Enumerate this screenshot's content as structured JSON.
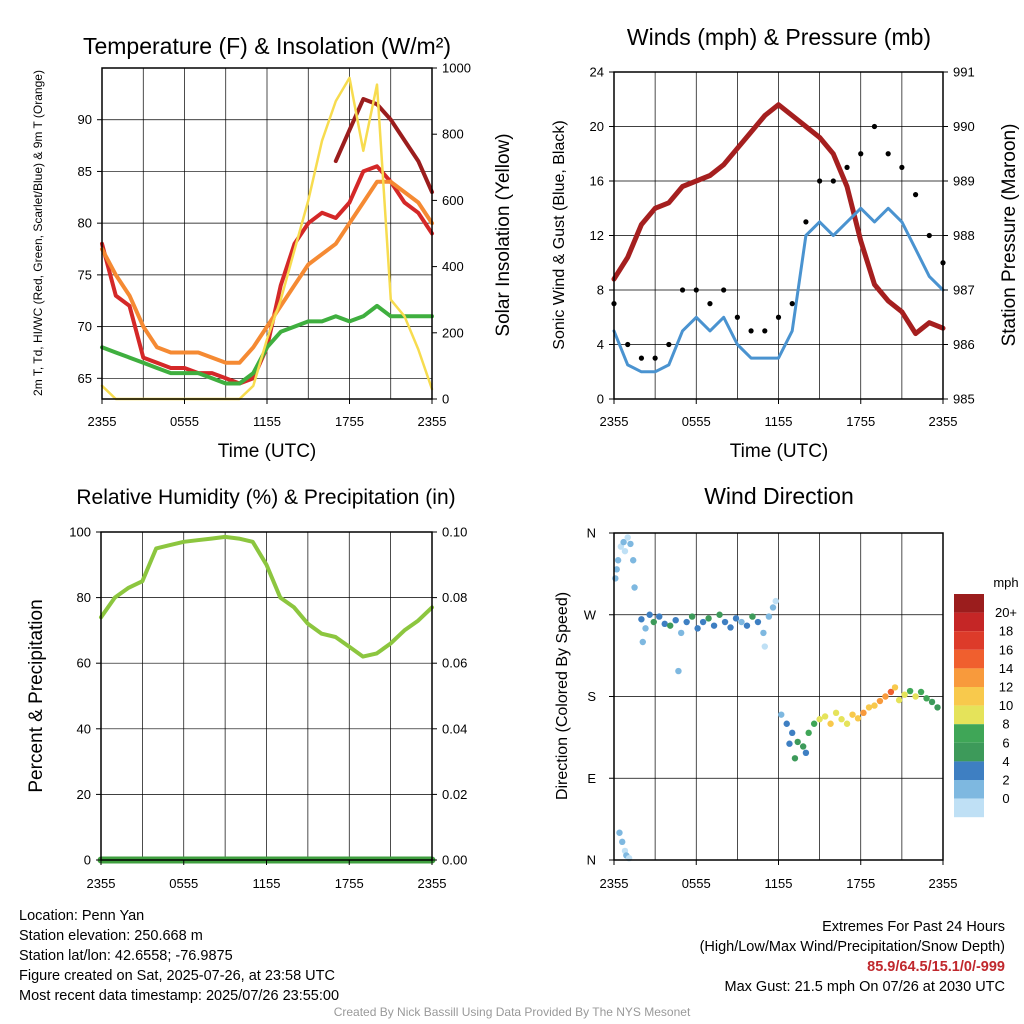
{
  "colors": {
    "temp_red": "#d42828",
    "dewpoint_green": "#3faf3f",
    "heat_index_scarlet": "#9b1d1d",
    "temp9m_orange": "#f58a33",
    "solar_yellow": "#f7dc4f",
    "wind_blue": "#4a93d0",
    "gust_black": "#000000",
    "pressure_maroon": "#a51f1f",
    "rh_green": "#8cc63f",
    "precip_green": "#3f9f3f"
  },
  "time_ticks": [
    "2355",
    "0555",
    "1155",
    "1755",
    "2355"
  ],
  "chart_data": [
    {
      "type": "line",
      "title": "Temperature (F) & Insolation (W/m²)",
      "xlabel": "Time (UTC)",
      "ylabel": "2m T, Td, HI/WC (Red, Green, Scarlet/Blue) & 9m T (Orange)",
      "ylabel_right": "Solar Insolation (Yellow)",
      "ylim": [
        63,
        95
      ],
      "ylim_right": [
        0,
        1000
      ],
      "yticks": [
        65,
        70,
        75,
        80,
        85,
        90
      ],
      "yticks_right": [
        0,
        200,
        400,
        600,
        800,
        1000
      ],
      "x_hours": [
        0,
        1,
        2,
        3,
        4,
        5,
        6,
        7,
        8,
        9,
        10,
        11,
        12,
        13,
        14,
        15,
        16,
        17,
        18,
        19,
        20,
        21,
        22,
        23,
        24
      ],
      "series": [
        {
          "key": "temp_2m",
          "color_key": "temp_red",
          "values": [
            78,
            73,
            72,
            67,
            66.5,
            66,
            66,
            65.5,
            65.5,
            65,
            64.5,
            65,
            68,
            74,
            78,
            80,
            81,
            80.5,
            82,
            85,
            85.5,
            84,
            82,
            81,
            79
          ]
        },
        {
          "key": "heat_index",
          "color_key": "heat_index_scarlet",
          "values": [
            null,
            null,
            null,
            null,
            null,
            null,
            null,
            null,
            null,
            null,
            null,
            null,
            null,
            null,
            null,
            null,
            null,
            86,
            89,
            92,
            91.5,
            90,
            88,
            86,
            83
          ]
        },
        {
          "key": "temp_9m",
          "color_key": "temp9m_orange",
          "values": [
            77.5,
            75,
            73,
            70,
            68,
            67.5,
            67.5,
            67.5,
            67,
            66.5,
            66.5,
            68,
            70,
            72,
            74,
            76,
            77,
            78,
            80,
            82,
            84,
            84,
            83,
            82,
            80
          ]
        },
        {
          "key": "dewpoint",
          "color_key": "dewpoint_green",
          "values": [
            68,
            67.5,
            67,
            66.5,
            66,
            65.5,
            65.5,
            65.5,
            65,
            64.5,
            64.5,
            65.5,
            68,
            69.5,
            70,
            70.5,
            70.5,
            71,
            70.5,
            71,
            72,
            71,
            71,
            71,
            71
          ]
        },
        {
          "key": "solar",
          "color_key": "solar_yellow",
          "axis": "right",
          "values": [
            40,
            0,
            0,
            0,
            0,
            0,
            0,
            0,
            0,
            0,
            0,
            40,
            180,
            300,
            450,
            600,
            780,
            900,
            970,
            750,
            950,
            300,
            250,
            150,
            30
          ]
        }
      ]
    },
    {
      "type": "line",
      "title": "Winds (mph) & Pressure (mb)",
      "xlabel": "Time (UTC)",
      "ylabel": "Sonic Wind & Gust (Blue, Black)",
      "ylabel_right": "Station Pressure (Maroon)",
      "ylim": [
        0,
        24
      ],
      "ylim_right": [
        985,
        991
      ],
      "yticks": [
        0,
        4,
        8,
        12,
        16,
        20,
        24
      ],
      "yticks_right": [
        985,
        986,
        987,
        988,
        989,
        990,
        991
      ],
      "x_hours": [
        0,
        1,
        2,
        3,
        4,
        5,
        6,
        7,
        8,
        9,
        10,
        11,
        12,
        13,
        14,
        15,
        16,
        17,
        18,
        19,
        20,
        21,
        22,
        23,
        24
      ],
      "series": [
        {
          "key": "pressure",
          "color_key": "pressure_maroon",
          "axis": "right",
          "values": [
            987.2,
            987.6,
            988.2,
            988.5,
            988.6,
            988.9,
            989.0,
            989.1,
            989.3,
            989.6,
            989.9,
            990.2,
            990.4,
            990.2,
            990.0,
            989.8,
            989.5,
            988.9,
            987.9,
            987.1,
            986.8,
            986.6,
            986.2,
            986.4,
            986.3
          ]
        },
        {
          "key": "wind",
          "color_key": "wind_blue",
          "values": [
            5,
            2.5,
            2,
            2,
            2.5,
            5,
            6,
            5,
            6,
            4,
            3,
            3,
            3,
            5,
            12,
            13,
            12,
            13,
            14,
            13,
            14,
            13,
            11,
            9,
            8
          ]
        },
        {
          "key": "gust",
          "color_key": "gust_black",
          "style": "dots",
          "values": [
            7,
            4,
            3,
            3,
            4,
            8,
            8,
            7,
            8,
            6,
            5,
            5,
            6,
            7,
            13,
            16,
            16,
            17,
            18,
            20,
            18,
            17,
            15,
            12,
            10
          ]
        }
      ]
    },
    {
      "type": "line",
      "title": "Relative Humidity (%) & Precipitation (in)",
      "ylabel": "Percent & Precipitation",
      "ylim": [
        0,
        100
      ],
      "ylim_right": [
        0,
        0.1
      ],
      "yticks": [
        0,
        20,
        40,
        60,
        80,
        100
      ],
      "yticks_right": [
        "0.00",
        "0.02",
        "0.04",
        "0.06",
        "0.08",
        "0.10"
      ],
      "x_hours": [
        0,
        1,
        2,
        3,
        4,
        5,
        6,
        7,
        8,
        9,
        10,
        11,
        12,
        13,
        14,
        15,
        16,
        17,
        18,
        19,
        20,
        21,
        22,
        23,
        24
      ],
      "series": [
        {
          "key": "rh",
          "color_key": "rh_green",
          "values": [
            74,
            80,
            83,
            85,
            95,
            96,
            97,
            97.5,
            98,
            98.5,
            98,
            97,
            90,
            80,
            77,
            72,
            69,
            68,
            65,
            62,
            63,
            66,
            70,
            73,
            77
          ]
        },
        {
          "key": "precip",
          "color_key": "precip_green",
          "axis": "right",
          "values": [
            0,
            0,
            0,
            0,
            0,
            0,
            0,
            0,
            0,
            0,
            0,
            0,
            0,
            0,
            0,
            0,
            0,
            0,
            0,
            0,
            0,
            0,
            0,
            0,
            0
          ]
        }
      ]
    },
    {
      "type": "scatter",
      "title": "Wind Direction",
      "ylabel": "Direction (Colored By Speed)",
      "ytick_labels": [
        "N",
        "E",
        "S",
        "W",
        "N"
      ],
      "ylim_deg": [
        0,
        360
      ],
      "colorbar_title": "mph",
      "colorbar_labels": [
        "20+",
        "18",
        "16",
        "14",
        "12",
        "10",
        "8",
        "6",
        "4",
        "2",
        "0"
      ],
      "colorbar_colors": [
        "#9b1d1d",
        "#c52626",
        "#dd3b2a",
        "#f05f2e",
        "#f89a3c",
        "#f8c94c",
        "#e5e35a",
        "#3fa657",
        "#3d9a5a",
        "#3e7fc2",
        "#7eb8e0",
        "#bfe0f5"
      ],
      "points": [
        {
          "h": 0.1,
          "deg": 310,
          "mph": 3
        },
        {
          "h": 0.2,
          "deg": 320,
          "mph": 2
        },
        {
          "h": 0.3,
          "deg": 330,
          "mph": 2
        },
        {
          "h": 0.5,
          "deg": 345,
          "mph": 1
        },
        {
          "h": 0.7,
          "deg": 350,
          "mph": 2
        },
        {
          "h": 0.8,
          "deg": 340,
          "mph": 1
        },
        {
          "h": 1.0,
          "deg": 355,
          "mph": 1
        },
        {
          "h": 1.2,
          "deg": 348,
          "mph": 2
        },
        {
          "h": 1.4,
          "deg": 330,
          "mph": 2
        },
        {
          "h": 1.5,
          "deg": 300,
          "mph": 2
        },
        {
          "h": 0.4,
          "deg": 30,
          "mph": 2
        },
        {
          "h": 0.6,
          "deg": 20,
          "mph": 2
        },
        {
          "h": 0.8,
          "deg": 10,
          "mph": 1
        },
        {
          "h": 0.9,
          "deg": 5,
          "mph": 2
        },
        {
          "h": 1.1,
          "deg": 2,
          "mph": 1
        },
        {
          "h": 2.0,
          "deg": 265,
          "mph": 4
        },
        {
          "h": 2.3,
          "deg": 255,
          "mph": 3
        },
        {
          "h": 2.6,
          "deg": 270,
          "mph": 5
        },
        {
          "h": 2.9,
          "deg": 262,
          "mph": 6
        },
        {
          "h": 3.3,
          "deg": 268,
          "mph": 5
        },
        {
          "h": 3.7,
          "deg": 260,
          "mph": 4
        },
        {
          "h": 4.1,
          "deg": 258,
          "mph": 6
        },
        {
          "h": 4.5,
          "deg": 264,
          "mph": 4
        },
        {
          "h": 4.9,
          "deg": 250,
          "mph": 3
        },
        {
          "h": 5.3,
          "deg": 262,
          "mph": 5
        },
        {
          "h": 5.7,
          "deg": 268,
          "mph": 6
        },
        {
          "h": 6.1,
          "deg": 255,
          "mph": 4
        },
        {
          "h": 6.5,
          "deg": 262,
          "mph": 5
        },
        {
          "h": 6.9,
          "deg": 266,
          "mph": 6
        },
        {
          "h": 7.3,
          "deg": 258,
          "mph": 4
        },
        {
          "h": 7.7,
          "deg": 270,
          "mph": 6
        },
        {
          "h": 8.1,
          "deg": 262,
          "mph": 5
        },
        {
          "h": 8.5,
          "deg": 256,
          "mph": 4
        },
        {
          "h": 8.9,
          "deg": 266,
          "mph": 5
        },
        {
          "h": 9.3,
          "deg": 262,
          "mph": 3
        },
        {
          "h": 9.7,
          "deg": 258,
          "mph": 4
        },
        {
          "h": 10.1,
          "deg": 268,
          "mph": 6
        },
        {
          "h": 10.5,
          "deg": 262,
          "mph": 4
        },
        {
          "h": 10.9,
          "deg": 250,
          "mph": 3
        },
        {
          "h": 11.3,
          "deg": 268,
          "mph": 2
        },
        {
          "h": 11.6,
          "deg": 278,
          "mph": 2
        },
        {
          "h": 11.8,
          "deg": 285,
          "mph": 1
        },
        {
          "h": 4.7,
          "deg": 208,
          "mph": 3
        },
        {
          "h": 2.1,
          "deg": 240,
          "mph": 3
        },
        {
          "h": 11.0,
          "deg": 235,
          "mph": 1
        },
        {
          "h": 12.2,
          "deg": 160,
          "mph": 3
        },
        {
          "h": 12.6,
          "deg": 150,
          "mph": 4
        },
        {
          "h": 13.0,
          "deg": 140,
          "mph": 5
        },
        {
          "h": 13.4,
          "deg": 130,
          "mph": 6
        },
        {
          "h": 13.8,
          "deg": 125,
          "mph": 7
        },
        {
          "h": 14.2,
          "deg": 140,
          "mph": 8
        },
        {
          "h": 14.6,
          "deg": 150,
          "mph": 9
        },
        {
          "h": 15.0,
          "deg": 155,
          "mph": 10
        },
        {
          "h": 15.4,
          "deg": 158,
          "mph": 11
        },
        {
          "h": 15.8,
          "deg": 150,
          "mph": 12
        },
        {
          "h": 16.2,
          "deg": 162,
          "mph": 11
        },
        {
          "h": 16.6,
          "deg": 155,
          "mph": 10
        },
        {
          "h": 17.0,
          "deg": 150,
          "mph": 11
        },
        {
          "h": 17.4,
          "deg": 160,
          "mph": 12
        },
        {
          "h": 17.8,
          "deg": 156,
          "mph": 13
        },
        {
          "h": 18.2,
          "deg": 162,
          "mph": 14
        },
        {
          "h": 18.6,
          "deg": 168,
          "mph": 12
        },
        {
          "h": 19.0,
          "deg": 170,
          "mph": 13
        },
        {
          "h": 19.4,
          "deg": 175,
          "mph": 15
        },
        {
          "h": 19.8,
          "deg": 180,
          "mph": 14
        },
        {
          "h": 20.2,
          "deg": 185,
          "mph": 17
        },
        {
          "h": 20.5,
          "deg": 190,
          "mph": 12
        },
        {
          "h": 20.8,
          "deg": 176,
          "mph": 11
        },
        {
          "h": 21.2,
          "deg": 182,
          "mph": 10
        },
        {
          "h": 21.6,
          "deg": 186,
          "mph": 9
        },
        {
          "h": 22.0,
          "deg": 180,
          "mph": 10
        },
        {
          "h": 22.4,
          "deg": 185,
          "mph": 9
        },
        {
          "h": 22.8,
          "deg": 178,
          "mph": 8
        },
        {
          "h": 23.2,
          "deg": 174,
          "mph": 7
        },
        {
          "h": 23.6,
          "deg": 168,
          "mph": 6
        },
        {
          "h": 14.0,
          "deg": 118,
          "mph": 5
        },
        {
          "h": 12.8,
          "deg": 128,
          "mph": 4
        },
        {
          "h": 13.2,
          "deg": 112,
          "mph": 6
        }
      ]
    }
  ],
  "info": {
    "location": "Location: Penn Yan",
    "elevation": "Station elevation: 250.668 m",
    "latlon": "Station lat/lon: 42.6558; -76.9875",
    "created": "Figure created on Sat, 2025-07-26, at 23:58 UTC",
    "recent": "Most recent data timestamp: 2025/07/26 23:55:00"
  },
  "extremes": {
    "title": "Extremes For Past 24 Hours",
    "subtitle": "(High/Low/Max Wind/Precipitation/Snow Depth)",
    "values": "85.9/64.5/15.1/0/-999",
    "max_gust": "Max Gust: 21.5 mph On 07/26 at 2030 UTC"
  },
  "credit": "Created By Nick Bassill Using Data Provided By The NYS Mesonet"
}
